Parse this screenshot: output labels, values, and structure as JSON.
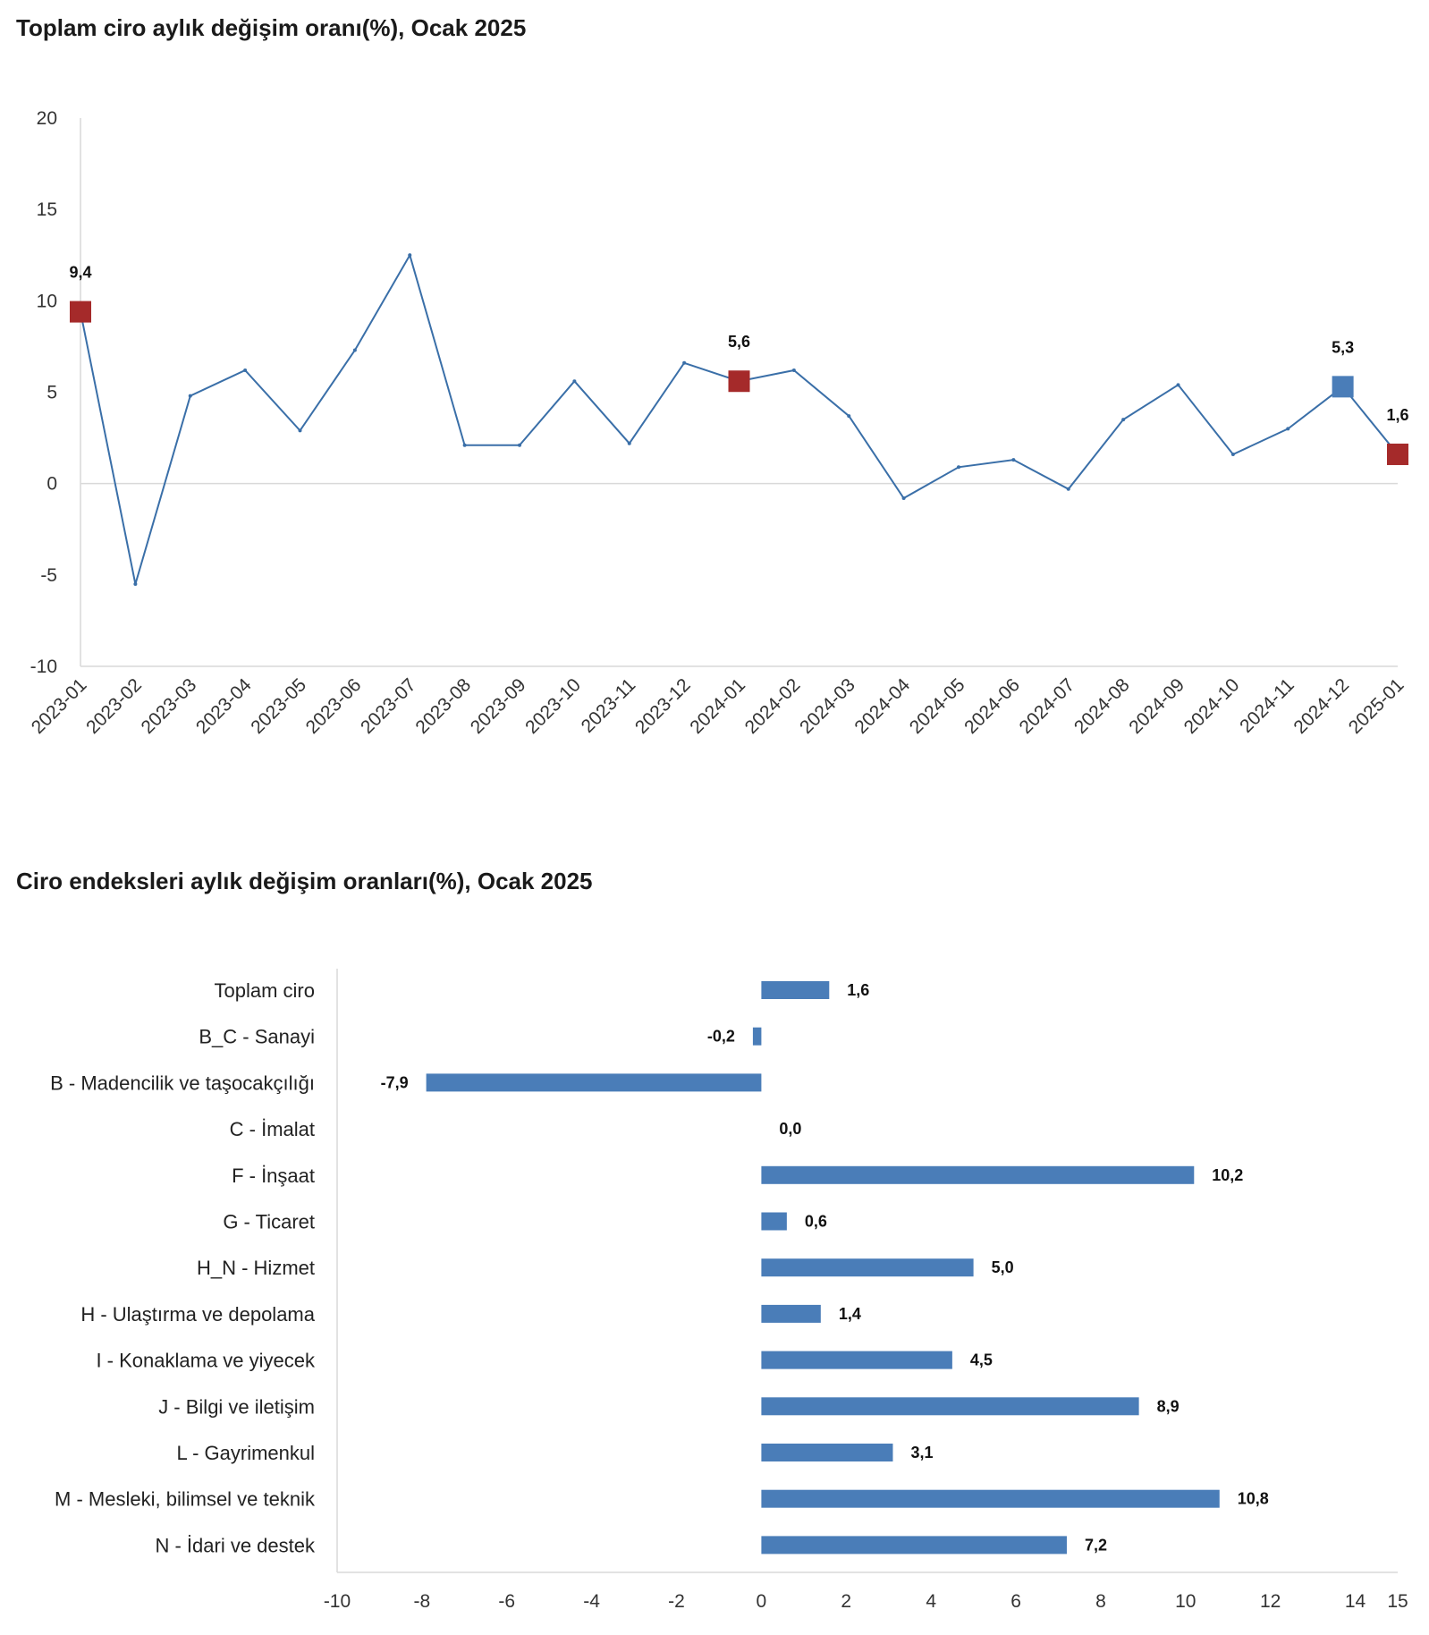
{
  "chart_data": [
    {
      "type": "line",
      "title": "Toplam ciro aylık değişim oranı(%), Ocak 2025",
      "x": [
        "2023-01",
        "2023-02",
        "2023-03",
        "2023-04",
        "2023-05",
        "2023-06",
        "2023-07",
        "2023-08",
        "2023-09",
        "2023-10",
        "2023-11",
        "2023-12",
        "2024-01",
        "2024-02",
        "2024-03",
        "2024-04",
        "2024-05",
        "2024-06",
        "2024-07",
        "2024-08",
        "2024-09",
        "2024-10",
        "2024-11",
        "2024-12",
        "2025-01"
      ],
      "series": [
        {
          "values": [
            9.4,
            -5.5,
            4.8,
            6.2,
            2.9,
            7.3,
            12.5,
            2.1,
            2.1,
            5.6,
            2.2,
            6.6,
            5.6,
            6.2,
            3.7,
            -0.8,
            0.9,
            1.3,
            -0.3,
            3.5,
            5.4,
            1.6,
            3.0,
            5.3,
            1.6
          ]
        }
      ],
      "highlighted_points": [
        {
          "x": "2023-01",
          "label": "9,4",
          "color": "#a52a2a"
        },
        {
          "x": "2024-01",
          "label": "5,6",
          "color": "#a52a2a"
        },
        {
          "x": "2024-12",
          "label": "5,3",
          "color": "#4a7db8"
        },
        {
          "x": "2025-01",
          "label": "1,6",
          "color": "#a52a2a"
        }
      ],
      "yticks": [
        -10,
        -5,
        0,
        5,
        10,
        15,
        20
      ],
      "ylim": [
        -10,
        20
      ],
      "grid": false,
      "line_color": "#3a6fa8"
    },
    {
      "type": "bar",
      "orientation": "horizontal",
      "title": "Ciro endeksleri aylık değişim oranları(%), Ocak 2025",
      "categories": [
        "Toplam ciro",
        "B_C - Sanayi",
        "B - Madencilik ve taşocakçılığı",
        "C - İmalat",
        "F - İnşaat",
        "G - Ticaret",
        "H_N - Hizmet",
        "H - Ulaştırma ve depolama",
        "I - Konaklama ve yiyecek",
        "J - Bilgi ve iletişim",
        "L - Gayrimenkul",
        "M - Mesleki, bilimsel ve teknik",
        "N - İdari ve destek"
      ],
      "values": [
        1.6,
        -0.2,
        -7.9,
        0.0,
        10.2,
        0.6,
        5.0,
        1.4,
        4.5,
        8.9,
        3.1,
        10.8,
        7.2
      ],
      "data_labels": [
        "1,6",
        "-0,2",
        "-7,9",
        "0,0",
        "10,2",
        "0,6",
        "5,0",
        "1,4",
        "4,5",
        "8,9",
        "3,1",
        "10,8",
        "7,2"
      ],
      "xticks": [
        -10,
        -8,
        -6,
        -4,
        -2,
        0,
        2,
        4,
        6,
        8,
        10,
        12,
        14,
        15
      ],
      "xlim": [
        -10,
        15
      ],
      "grid": false,
      "bar_color": "#4a7db8"
    }
  ]
}
